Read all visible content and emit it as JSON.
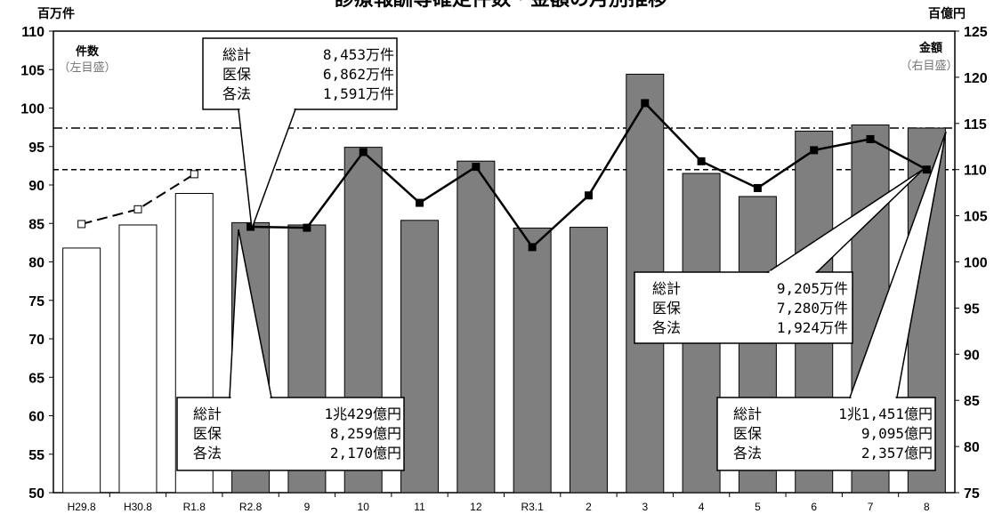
{
  "chart_data": {
    "type": "bar",
    "title": "診療報酬等確定件数・金額の月別推移",
    "left_axis": {
      "unit": "百万件",
      "label": "件数",
      "sublabel": "（左目盛）",
      "ylim": [
        50,
        110
      ],
      "ticks": [
        50,
        55,
        60,
        65,
        70,
        75,
        80,
        85,
        90,
        95,
        100,
        105,
        110
      ]
    },
    "right_axis": {
      "unit": "百億円",
      "label": "金額",
      "sublabel": "（右目盛）",
      "ylim": [
        75,
        125
      ],
      "ticks": [
        75,
        80,
        85,
        90,
        95,
        100,
        105,
        110,
        115,
        120,
        125
      ]
    },
    "categories": [
      "H29.8",
      "H30.8",
      "R1.8",
      "R2.8",
      "9",
      "10",
      "11",
      "12",
      "R3.1",
      "2",
      "3",
      "4",
      "5",
      "6",
      "7",
      "8"
    ],
    "series": [
      {
        "name": "件数",
        "axis": "left",
        "kind": "bar",
        "values": [
          81.8,
          84.8,
          88.9,
          85.1,
          84.8,
          94.9,
          85.4,
          93.1,
          84.4,
          84.5,
          104.4,
          91.5,
          88.5,
          97.0,
          97.8,
          97.4
        ],
        "fills": [
          "#ffffff",
          "#ffffff",
          "#ffffff",
          "#7f7f7f",
          "#7f7f7f",
          "#7f7f7f",
          "#7f7f7f",
          "#7f7f7f",
          "#7f7f7f",
          "#7f7f7f",
          "#7f7f7f",
          "#7f7f7f",
          "#7f7f7f",
          "#7f7f7f",
          "#7f7f7f",
          "#7f7f7f"
        ]
      },
      {
        "name": "金額",
        "axis": "right",
        "kind": "line",
        "values": [
          104.1,
          105.7,
          109.5,
          103.8,
          103.7,
          111.9,
          106.4,
          110.3,
          101.6,
          107.2,
          117.2,
          110.9,
          108.0,
          112.1,
          113.3,
          110.0
        ],
        "dashed_until": 2,
        "dash_gap_to": 3
      }
    ],
    "reference_lines": [
      {
        "axis": "left",
        "value": 97.4,
        "style": "dash-dot"
      },
      {
        "axis": "left",
        "value": 92.0,
        "style": "dashed"
      }
    ],
    "callouts": [
      {
        "lines": [
          [
            "総計",
            "8,453万件"
          ],
          [
            "医保",
            "6,862万件"
          ],
          [
            "各法",
            "1,591万件"
          ]
        ]
      },
      {
        "lines": [
          [
            "総計",
            "9,205万件"
          ],
          [
            "医保",
            "7,280万件"
          ],
          [
            "各法",
            "1,924万件"
          ]
        ]
      },
      {
        "lines": [
          [
            "総計",
            "1兆429億円"
          ],
          [
            "医保",
            "8,259億円"
          ],
          [
            "各法",
            "2,170億円"
          ]
        ]
      },
      {
        "lines": [
          [
            "総計",
            "1兆1,451億円"
          ],
          [
            "医保",
            "9,095億円"
          ],
          [
            "各法",
            "2,357億円"
          ]
        ]
      }
    ]
  }
}
